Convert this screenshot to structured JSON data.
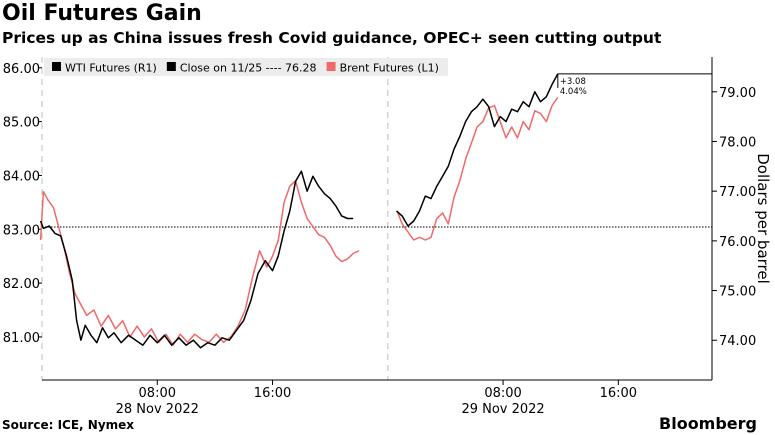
{
  "header": {
    "title": "Oil Futures Gain",
    "subtitle": "Prices up as China issues fresh Covid guidance, OPEC+ seen cutting output"
  },
  "footer": {
    "source": "Source: ICE, Nymex",
    "brand": "Bloomberg"
  },
  "colors": {
    "wti": "#000000",
    "brent": "#f06868",
    "legend_bg": "#ececec",
    "grid": "#c8c8c8"
  },
  "chart_data": {
    "type": "line",
    "legend": {
      "placement": "top-left",
      "items": [
        {
          "label": "WTI Futures (R1)",
          "color": "#000000"
        },
        {
          "label": "Close on 11/25 ---- 76.28",
          "color": "#000000"
        },
        {
          "label": "Brent Futures (L1)",
          "color": "#f06868"
        }
      ]
    },
    "x_axis": {
      "unit": "hours from 28 Nov 2022 00:00",
      "range": [
        0,
        46.5
      ],
      "ticks": [
        {
          "x": 8,
          "label": "08:00"
        },
        {
          "x": 16,
          "label": "16:00"
        },
        {
          "x": 32,
          "label": "08:00"
        },
        {
          "x": 40,
          "label": "16:00"
        }
      ],
      "date_labels": [
        {
          "x": 8,
          "label": "28 Nov 2022"
        },
        {
          "x": 32,
          "label": "29 Nov 2022"
        }
      ],
      "day_boundaries": [
        0,
        24
      ]
    },
    "y_left": {
      "label": "",
      "range": [
        80.2,
        86.2
      ],
      "ticks": [
        "81.00",
        "82.00",
        "83.00",
        "84.00",
        "85.00",
        "86.00"
      ]
    },
    "y_right": {
      "label": "Dollars per barrel",
      "range": [
        73.2,
        79.7
      ],
      "ticks": [
        "74.00",
        "75.00",
        "76.00",
        "77.00",
        "78.00",
        "79.00"
      ]
    },
    "reference_line": {
      "axis": "right",
      "value": 76.28,
      "label": "Close on 11/25 ---- 76.28"
    },
    "annotation": {
      "lines": [
        "+3.08",
        "4.04%"
      ],
      "value": 79.36
    },
    "series": [
      {
        "name": "Brent Futures (L1)",
        "axis": "left",
        "color": "#f06868",
        "segments": [
          [
            [
              -0.1,
              82.8
            ],
            [
              0.1,
              83.7
            ],
            [
              0.4,
              83.55
            ],
            [
              0.8,
              83.4
            ],
            [
              1.2,
              83.0
            ],
            [
              1.5,
              82.7
            ],
            [
              1.9,
              82.2
            ],
            [
              2.3,
              81.8
            ],
            [
              2.7,
              81.6
            ],
            [
              3.1,
              81.4
            ],
            [
              3.6,
              81.5
            ],
            [
              4.1,
              81.2
            ],
            [
              4.6,
              81.4
            ],
            [
              5.1,
              81.15
            ],
            [
              5.6,
              81.3
            ],
            [
              6.1,
              81.0
            ],
            [
              6.6,
              81.2
            ],
            [
              7.1,
              81.0
            ],
            [
              7.6,
              81.15
            ],
            [
              8.1,
              80.9
            ],
            [
              8.6,
              81.05
            ],
            [
              9.1,
              80.85
            ],
            [
              9.6,
              81.05
            ],
            [
              10.1,
              80.9
            ],
            [
              10.6,
              81.05
            ],
            [
              11.1,
              80.95
            ],
            [
              11.6,
              80.9
            ],
            [
              12.1,
              81.05
            ],
            [
              12.6,
              80.9
            ],
            [
              13.1,
              81.0
            ],
            [
              13.6,
              81.2
            ],
            [
              14.1,
              81.5
            ],
            [
              14.6,
              82.1
            ],
            [
              15.1,
              82.6
            ],
            [
              15.6,
              82.3
            ],
            [
              16.0,
              82.5
            ],
            [
              16.4,
              82.8
            ],
            [
              16.8,
              83.5
            ],
            [
              17.2,
              83.8
            ],
            [
              17.6,
              83.9
            ],
            [
              18.0,
              83.5
            ],
            [
              18.4,
              83.2
            ],
            [
              18.8,
              83.05
            ],
            [
              19.2,
              82.9
            ],
            [
              19.6,
              82.85
            ],
            [
              20.0,
              82.7
            ],
            [
              20.4,
              82.5
            ],
            [
              20.8,
              82.4
            ],
            [
              21.2,
              82.45
            ],
            [
              21.6,
              82.55
            ],
            [
              22.0,
              82.6
            ]
          ],
          [
            [
              24.7,
              83.3
            ],
            [
              25.0,
              83.1
            ],
            [
              25.4,
              82.95
            ],
            [
              25.8,
              82.8
            ],
            [
              26.2,
              82.85
            ],
            [
              26.6,
              82.8
            ],
            [
              27.0,
              82.85
            ],
            [
              27.4,
              83.2
            ],
            [
              27.8,
              83.3
            ],
            [
              28.2,
              83.1
            ],
            [
              28.6,
              83.6
            ],
            [
              29.0,
              83.9
            ],
            [
              29.4,
              84.3
            ],
            [
              29.8,
              84.6
            ],
            [
              30.2,
              84.9
            ],
            [
              30.6,
              85.0
            ],
            [
              31.0,
              85.25
            ],
            [
              31.4,
              85.3
            ],
            [
              31.8,
              85.0
            ],
            [
              32.2,
              84.7
            ],
            [
              32.6,
              84.9
            ],
            [
              33.0,
              84.7
            ],
            [
              33.4,
              85.0
            ],
            [
              33.8,
              84.85
            ],
            [
              34.2,
              85.2
            ],
            [
              34.6,
              85.15
            ],
            [
              35.0,
              85.0
            ],
            [
              35.4,
              85.3
            ],
            [
              35.8,
              85.45
            ]
          ]
        ]
      },
      {
        "name": "WTI Futures (R1)",
        "axis": "right",
        "color": "#000000",
        "segments": [
          [
            [
              -0.1,
              76.4
            ],
            [
              0.1,
              76.25
            ],
            [
              0.5,
              76.3
            ],
            [
              0.9,
              76.15
            ],
            [
              1.3,
              76.1
            ],
            [
              1.7,
              75.7
            ],
            [
              2.1,
              75.2
            ],
            [
              2.4,
              74.4
            ],
            [
              2.7,
              74.0
            ],
            [
              3.0,
              74.3
            ],
            [
              3.4,
              74.1
            ],
            [
              3.8,
              73.95
            ],
            [
              4.2,
              74.25
            ],
            [
              4.6,
              74.05
            ],
            [
              5.0,
              74.15
            ],
            [
              5.5,
              73.95
            ],
            [
              6.0,
              74.1
            ],
            [
              6.5,
              74.0
            ],
            [
              7.0,
              73.9
            ],
            [
              7.5,
              74.1
            ],
            [
              8.0,
              73.95
            ],
            [
              8.5,
              74.1
            ],
            [
              9.0,
              73.9
            ],
            [
              9.5,
              74.05
            ],
            [
              10.0,
              73.9
            ],
            [
              10.5,
              74.0
            ],
            [
              11.0,
              73.85
            ],
            [
              11.5,
              73.95
            ],
            [
              12.0,
              73.9
            ],
            [
              12.5,
              74.05
            ],
            [
              13.0,
              74.0
            ],
            [
              13.5,
              74.2
            ],
            [
              14.0,
              74.4
            ],
            [
              14.5,
              74.8
            ],
            [
              15.0,
              75.35
            ],
            [
              15.5,
              75.6
            ],
            [
              16.0,
              75.4
            ],
            [
              16.4,
              75.7
            ],
            [
              16.8,
              76.2
            ],
            [
              17.2,
              76.6
            ],
            [
              17.6,
              77.2
            ],
            [
              18.0,
              77.4
            ],
            [
              18.4,
              77.0
            ],
            [
              18.8,
              77.3
            ],
            [
              19.2,
              77.1
            ],
            [
              19.6,
              76.95
            ],
            [
              20.0,
              76.85
            ],
            [
              20.4,
              76.7
            ],
            [
              20.8,
              76.5
            ],
            [
              21.2,
              76.45
            ],
            [
              21.6,
              76.45
            ]
          ],
          [
            [
              24.6,
              76.6
            ],
            [
              25.0,
              76.5
            ],
            [
              25.4,
              76.3
            ],
            [
              25.8,
              76.4
            ],
            [
              26.2,
              76.6
            ],
            [
              26.6,
              76.9
            ],
            [
              27.0,
              76.85
            ],
            [
              27.4,
              77.1
            ],
            [
              27.8,
              77.3
            ],
            [
              28.2,
              77.5
            ],
            [
              28.6,
              77.85
            ],
            [
              29.0,
              78.1
            ],
            [
              29.4,
              78.4
            ],
            [
              29.8,
              78.6
            ],
            [
              30.2,
              78.7
            ],
            [
              30.6,
              78.85
            ],
            [
              31.0,
              78.7
            ],
            [
              31.4,
              78.3
            ],
            [
              31.8,
              78.5
            ],
            [
              32.2,
              78.4
            ],
            [
              32.6,
              78.65
            ],
            [
              33.0,
              78.6
            ],
            [
              33.4,
              78.8
            ],
            [
              33.8,
              78.7
            ],
            [
              34.2,
              79.0
            ],
            [
              34.6,
              78.8
            ],
            [
              35.0,
              78.9
            ],
            [
              35.4,
              79.15
            ],
            [
              35.8,
              79.36
            ]
          ]
        ]
      }
    ]
  }
}
